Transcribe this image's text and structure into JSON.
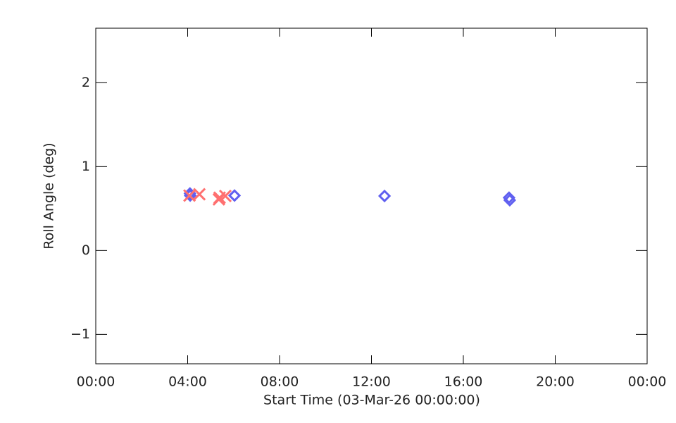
{
  "chart_data": {
    "type": "scatter",
    "x_label": "Start Time (03-Mar-26 00:00:00)",
    "y_label": "Roll Angle (deg)",
    "xlim": [
      0,
      24
    ],
    "xticks": [
      {
        "value": 0,
        "label": "00:00"
      },
      {
        "value": 4,
        "label": "04:00"
      },
      {
        "value": 8,
        "label": "08:00"
      },
      {
        "value": 12,
        "label": "12:00"
      },
      {
        "value": 16,
        "label": "16:00"
      },
      {
        "value": 20,
        "label": "20:00"
      },
      {
        "value": 24,
        "label": "00:00"
      }
    ],
    "ylim": [
      -1.35,
      2.65
    ],
    "yticks": [
      {
        "value": -1,
        "label": "−1"
      },
      0,
      1,
      2
    ],
    "series": [
      {
        "color": "#6060f0",
        "marker": "diamond",
        "x": [
          4.11,
          4.1,
          6.04,
          12.57,
          17.99,
          18.02
        ],
        "values": [
          0.655,
          0.68,
          0.655,
          0.65,
          0.63,
          0.6
        ]
      },
      {
        "color": "#ff7070",
        "marker": "x",
        "x": [
          4.08,
          4.51,
          5.36,
          5.39,
          5.64
        ],
        "values": [
          0.655,
          0.67,
          0.61,
          0.63,
          0.65
        ]
      }
    ]
  }
}
